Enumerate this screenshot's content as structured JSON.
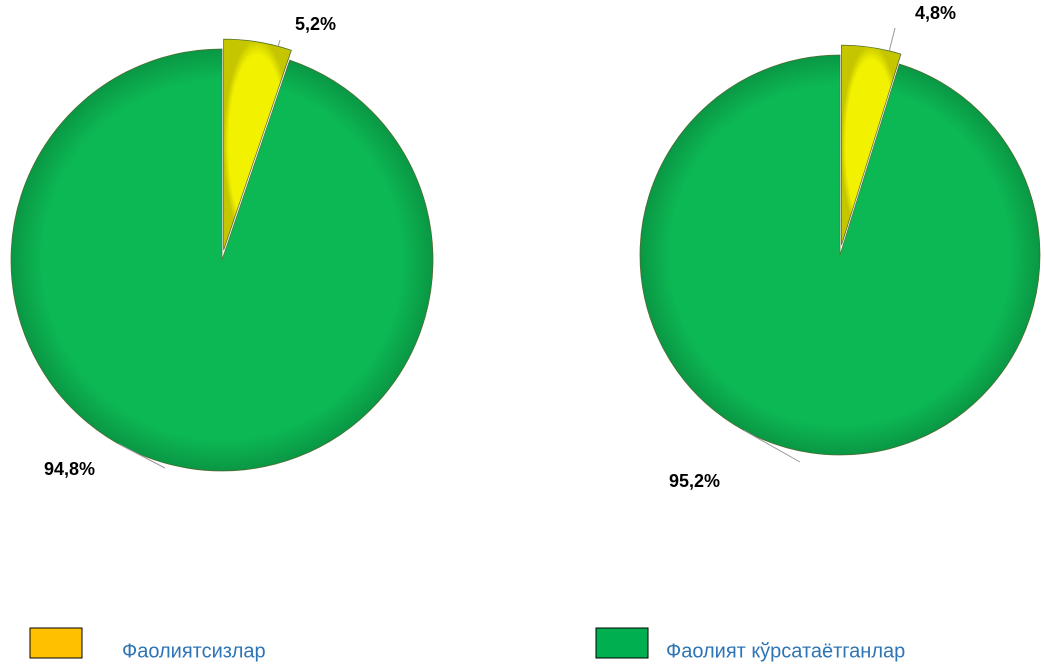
{
  "chart_data": [
    {
      "type": "pie",
      "values": [
        5.2,
        94.8
      ],
      "value_labels": [
        "5,2%",
        "94,8%"
      ],
      "colors": [
        "#f2f200",
        "#0cb853"
      ]
    },
    {
      "type": "pie",
      "values": [
        4.8,
        95.2
      ],
      "value_labels": [
        "4,8%",
        "95,2%"
      ],
      "colors": [
        "#f2f200",
        "#0cb853"
      ]
    }
  ],
  "legend": [
    {
      "name": "Фаолиятсизлар",
      "color": "#ffc000"
    },
    {
      "name": "Фаолият кўрсатаётганлар",
      "color": "#00b050"
    }
  ]
}
